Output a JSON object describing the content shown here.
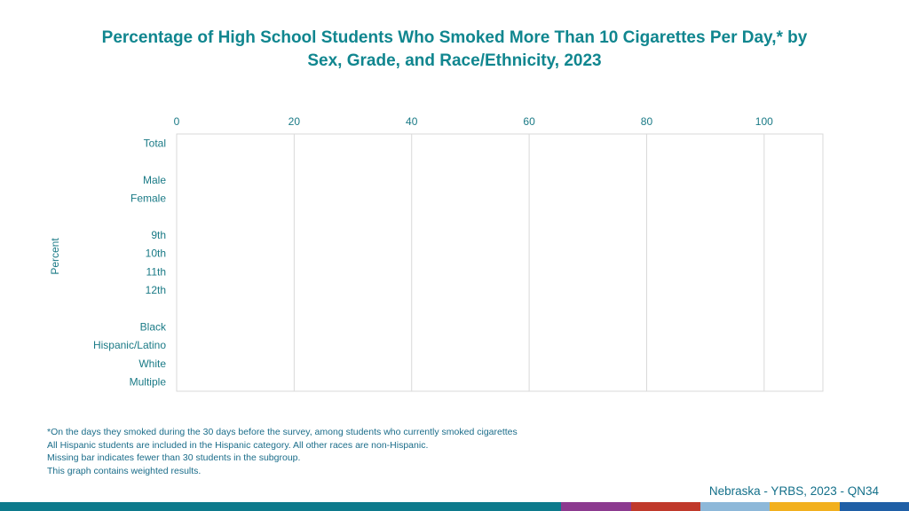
{
  "title_lines": [
    "Percentage of High School Students Who Smoked More Than 10 Cigarettes Per Day,* by",
    "Sex, Grade, and Race/Ethnicity, 2023"
  ],
  "chart_data": {
    "type": "bar",
    "orientation": "horizontal",
    "title": "Percentage of High School Students Who Smoked More Than 10 Cigarettes Per Day,* by Sex, Grade, and Race/Ethnicity, 2023",
    "ylabel": "Percent",
    "xlabel": "",
    "xlim": [
      0,
      110
    ],
    "x_ticks": [
      0,
      20,
      40,
      60,
      80,
      100
    ],
    "grid": true,
    "categories": [
      "Total",
      "",
      "Male",
      "Female",
      "",
      "9th",
      "10th",
      "11th",
      "12th",
      "",
      "Black",
      "Hispanic/Latino",
      "White",
      "Multiple"
    ],
    "values": [
      null,
      null,
      null,
      null,
      null,
      null,
      null,
      null,
      null,
      null,
      null,
      null,
      null,
      null
    ],
    "colors": {
      "axis_text": "#1a7a86",
      "grid": "#d9d9d9",
      "bar": "#1a7a86"
    }
  },
  "footnotes": [
    "*On the days they smoked during the 30 days before the survey, among students who currently smoked cigarettes",
    "All Hispanic students are included in the Hispanic category.  All other races are non-Hispanic.",
    "Missing bar indicates fewer than 30 students in the subgroup.",
    "This graph contains weighted results."
  ],
  "source": "Nebraska - YRBS, 2023 - QN34",
  "stripe_colors": [
    "#0d7a8c",
    "#8c3a8f",
    "#c0392b",
    "#8db8d9",
    "#f2b01e",
    "#1f5fa6"
  ]
}
